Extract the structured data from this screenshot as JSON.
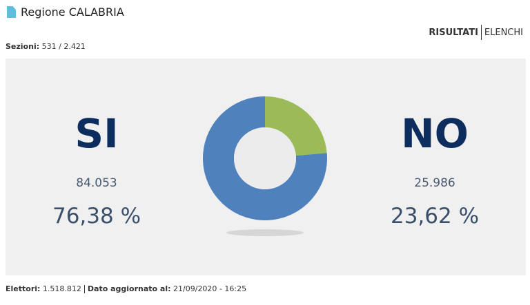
{
  "header": {
    "title": "Regione CALABRIA",
    "tabs": [
      "RISULTATI",
      "ELENCHI"
    ]
  },
  "sections": {
    "label": "Sezioni:",
    "value": "531 / 2.421"
  },
  "results": [
    {
      "name": "SI",
      "votes": "84.053",
      "percent_label": "76,38 %",
      "percent": 76.38,
      "color": "#4f81bd"
    },
    {
      "name": "NO",
      "votes": "25.986",
      "percent_label": "23,62 %",
      "percent": 23.62,
      "color": "#9bbb59"
    }
  ],
  "footer": {
    "voters_label": "Elettori:",
    "voters": "1.518.812",
    "updated_label": "Dato aggiornato al:",
    "updated": "21/09/2020 - 16:25"
  }
}
